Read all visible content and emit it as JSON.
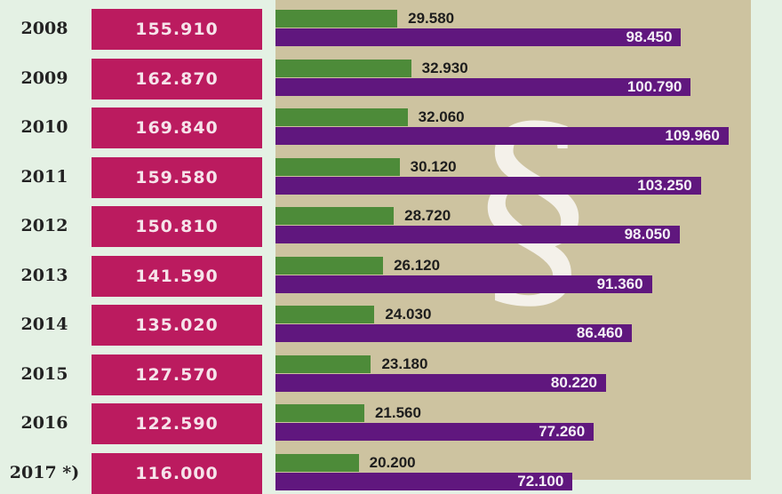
{
  "chart_data": {
    "type": "bar",
    "categories": [
      "2008",
      "2009",
      "2010",
      "2011",
      "2012",
      "2013",
      "2014",
      "2015",
      "2016",
      "2017 *)"
    ],
    "totals": [
      "155.910",
      "162.870",
      "169.840",
      "159.580",
      "150.810",
      "141.590",
      "135.020",
      "127.570",
      "122.590",
      "116.000"
    ],
    "series": [
      {
        "values": [
          29580,
          32930,
          32060,
          30120,
          28720,
          26120,
          24030,
          23180,
          21560,
          20200
        ],
        "labels": [
          "29.580",
          "32.930",
          "32.060",
          "30.120",
          "28.720",
          "26.120",
          "24.030",
          "23.180",
          "21.560",
          "20.200"
        ],
        "color": "#4d8b39"
      },
      {
        "values": [
          98450,
          100790,
          109960,
          103250,
          98050,
          91360,
          86460,
          80220,
          77260,
          72100
        ],
        "labels": [
          "98.450",
          "100.790",
          "109.960",
          "103.250",
          "98.050",
          "91.360",
          "86.460",
          "80.220",
          "77.260",
          "72.100"
        ],
        "color": "#60177e"
      }
    ],
    "total_color": "#bb1b5f",
    "panel_color": "#cdc3a0",
    "background_color": "#e4f1e4",
    "watermark_symbol": "§"
  }
}
